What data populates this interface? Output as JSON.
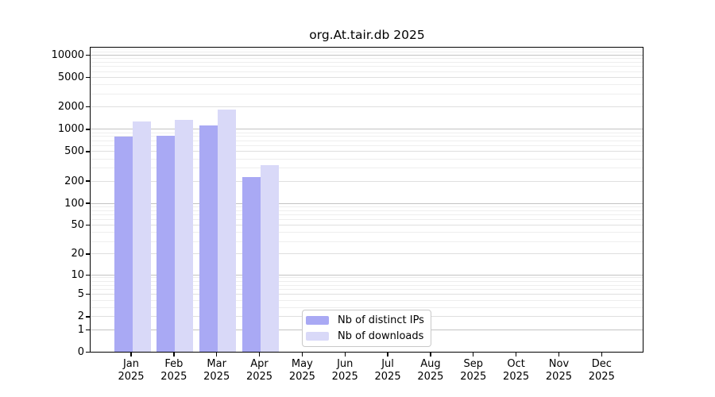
{
  "chart_data": {
    "type": "bar",
    "title": "org.At.tair.db 2025",
    "categories": [
      "Jan 2025",
      "Feb 2025",
      "Mar 2025",
      "Apr 2025",
      "May 2025",
      "Jun 2025",
      "Jul 2025",
      "Aug 2025",
      "Sep 2025",
      "Oct 2025",
      "Nov 2025",
      "Dec 2025"
    ],
    "series": [
      {
        "name": "Nb of distinct IPs",
        "color": "#a9a9f4",
        "values": [
          790,
          815,
          1130,
          225,
          null,
          null,
          null,
          null,
          null,
          null,
          null,
          null
        ]
      },
      {
        "name": "Nb of downloads",
        "color": "#d9d9f8",
        "values": [
          1270,
          1350,
          1850,
          332,
          null,
          null,
          null,
          null,
          null,
          null,
          null,
          null
        ]
      }
    ],
    "xlabel": "",
    "ylabel": "",
    "yscale": "log1p",
    "yticks": [
      0,
      1,
      2,
      5,
      10,
      20,
      50,
      100,
      200,
      500,
      1000,
      2000,
      5000,
      10000
    ],
    "ylim": [
      0,
      12600
    ],
    "grid": "horizontal",
    "legend_position": "bottom-center-inside"
  },
  "colors": {
    "grid_major": "#c3c3c3",
    "grid_mid": "#dfdfdf",
    "grid_minor": "#eeeeee",
    "axis": "#000000",
    "background": "#ffffff"
  }
}
